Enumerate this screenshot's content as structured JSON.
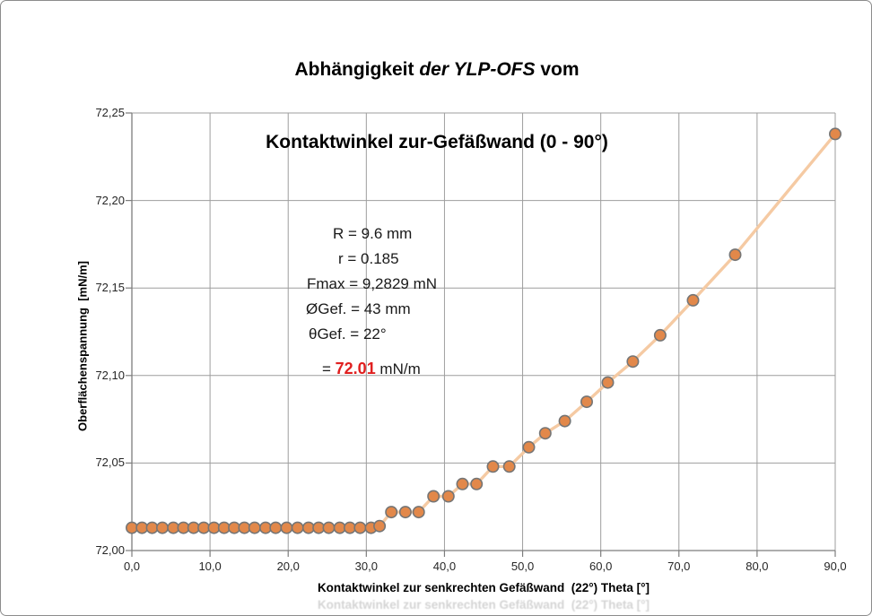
{
  "title": {
    "line1_prefix": "Abhängigkeit ",
    "line1_italic": "der YLP-OFS",
    "line1_suffix": " vom",
    "line2": "Kontaktwinkel zur-Gefäßwand (0 - 90°)"
  },
  "annotation": {
    "lines": [
      "R = 9.6 mm",
      "r = 0.185",
      "Fmax = 9,2829 mN",
      "ØGef. = 43 mm",
      "θGef. = 22°"
    ],
    "result_prefix": "= ",
    "result_value": "72.01",
    "result_suffix": " mN/m",
    "result_color": "#e02020"
  },
  "chart_data": {
    "type": "scatter",
    "title": "Abhängigkeit der YLP-OFS vom Kontaktwinkel zur-Gefäßwand (0 - 90°)",
    "xlabel": "Kontaktwinkel zur senkrechten Gefäßwand  (22°) Theta [°]",
    "ylabel": "Oberflächenspannung  [mN/m]",
    "xlim": [
      0,
      90
    ],
    "ylim": [
      72.0,
      72.25
    ],
    "grid": true,
    "legend": "none",
    "xticks": [
      "0,0",
      "10,0",
      "20,0",
      "30,0",
      "40,0",
      "50,0",
      "60,0",
      "70,0",
      "80,0",
      "90,0"
    ],
    "xtick_values": [
      0,
      10,
      20,
      30,
      40,
      50,
      60,
      70,
      80,
      90
    ],
    "yticks": [
      "72,00",
      "72,05",
      "72,10",
      "72,15",
      "72,20",
      "72,25"
    ],
    "ytick_values": [
      72.0,
      72.05,
      72.1,
      72.15,
      72.2,
      72.25
    ],
    "points": [
      [
        0.0,
        72.013
      ],
      [
        1.3,
        72.013
      ],
      [
        2.6,
        72.013
      ],
      [
        3.9,
        72.013
      ],
      [
        5.3,
        72.013
      ],
      [
        6.6,
        72.013
      ],
      [
        7.9,
        72.013
      ],
      [
        9.2,
        72.013
      ],
      [
        10.5,
        72.013
      ],
      [
        11.8,
        72.013
      ],
      [
        13.1,
        72.013
      ],
      [
        14.4,
        72.013
      ],
      [
        15.7,
        72.013
      ],
      [
        17.1,
        72.013
      ],
      [
        18.4,
        72.013
      ],
      [
        19.8,
        72.013
      ],
      [
        21.2,
        72.013
      ],
      [
        22.6,
        72.013
      ],
      [
        23.9,
        72.013
      ],
      [
        25.2,
        72.013
      ],
      [
        26.6,
        72.013
      ],
      [
        27.9,
        72.013
      ],
      [
        29.2,
        72.013
      ],
      [
        30.6,
        72.013
      ],
      [
        31.7,
        72.014
      ],
      [
        33.2,
        72.022
      ],
      [
        35.0,
        72.022
      ],
      [
        36.7,
        72.022
      ],
      [
        38.6,
        72.031
      ],
      [
        40.5,
        72.031
      ],
      [
        42.3,
        72.038
      ],
      [
        44.1,
        72.038
      ],
      [
        46.2,
        72.048
      ],
      [
        48.3,
        72.048
      ],
      [
        50.8,
        72.059
      ],
      [
        52.9,
        72.067
      ],
      [
        55.4,
        72.074
      ],
      [
        58.2,
        72.085
      ],
      [
        60.9,
        72.096
      ],
      [
        64.1,
        72.108
      ],
      [
        67.6,
        72.123
      ],
      [
        71.8,
        72.143
      ],
      [
        77.2,
        72.169
      ],
      [
        90.0,
        72.238
      ]
    ],
    "colors": {
      "marker_fill": "#e2884a",
      "marker_stroke": "#757575",
      "line": "#f5caa3",
      "grid": "#9e9e9e",
      "axis": "#7d7d7d",
      "tick_text": "#262626"
    }
  }
}
